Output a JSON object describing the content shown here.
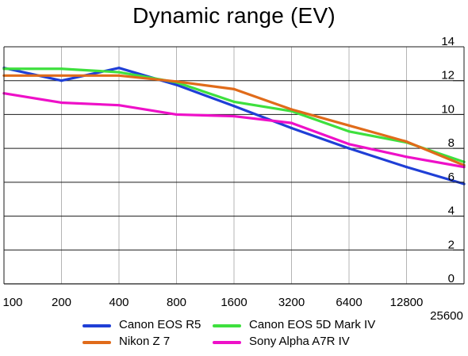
{
  "chart_data": {
    "type": "line",
    "title": "Dynamic range (EV)",
    "x": [
      "100",
      "200",
      "400",
      "800",
      "1600",
      "3200",
      "6400",
      "12800",
      "25600"
    ],
    "ylim": [
      0,
      14
    ],
    "yticks": [
      0,
      2,
      4,
      6,
      8,
      10,
      12,
      14
    ],
    "grid": true,
    "legend_position": "bottom",
    "series": [
      {
        "name": "Canon EOS R5",
        "color": "#1f3fd6",
        "values": [
          12.75,
          12.0,
          12.75,
          11.75,
          10.5,
          9.2,
          8.0,
          6.9,
          5.9
        ]
      },
      {
        "name": "Canon EOS 5D Mark IV",
        "color": "#3ee03e",
        "values": [
          12.7,
          12.7,
          12.5,
          11.9,
          10.75,
          10.2,
          9.0,
          8.35,
          7.2
        ]
      },
      {
        "name": "Nikon Z 7",
        "color": "#e06b1a",
        "values": [
          12.3,
          12.3,
          12.3,
          11.95,
          11.5,
          10.3,
          9.35,
          8.4,
          7.0
        ]
      },
      {
        "name": "Sony Alpha A7R IV",
        "color": "#ee10c8",
        "values": [
          11.25,
          10.7,
          10.55,
          10.0,
          9.9,
          9.5,
          8.25,
          7.5,
          6.9
        ]
      }
    ]
  }
}
